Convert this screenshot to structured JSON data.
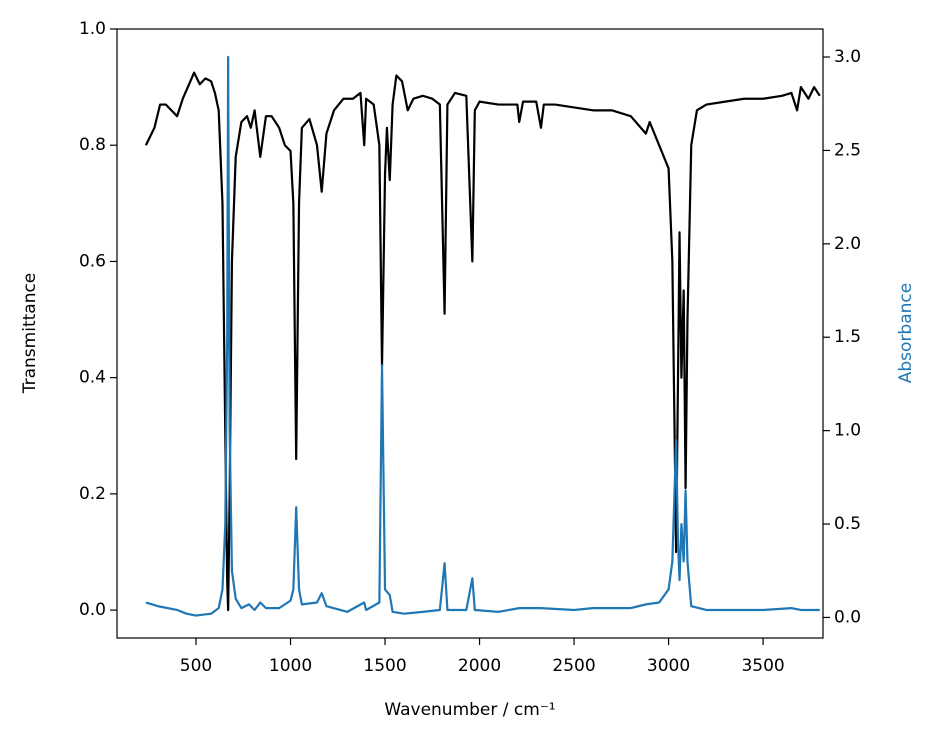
{
  "chart_data": {
    "type": "line",
    "xlabel": "Wavenumber / cm⁻¹",
    "ylabel": "Transmittance",
    "y2label": "Absorbance",
    "xlim": [
      82,
      3817
    ],
    "ylim": [
      -0.048,
      1.0
    ],
    "y2lim": [
      -0.11,
      3.15
    ],
    "xticks": [
      500,
      1000,
      1500,
      2000,
      2500,
      3000,
      3500
    ],
    "yticks": [
      {
        "value": 0.0,
        "label": "0.0"
      },
      0.2,
      0.4,
      0.6,
      0.8,
      {
        "value": 1.0,
        "label": "1.0"
      }
    ],
    "y2ticks": [
      {
        "value": 0.0,
        "label": "0.0"
      },
      0.5,
      {
        "value": 1.0,
        "label": "1.0"
      },
      1.5,
      {
        "value": 2.0,
        "label": "2.0"
      },
      2.5,
      {
        "value": 3.0,
        "label": "3.0"
      }
    ],
    "series": [
      {
        "color": "#000000",
        "x": [
          235,
          250,
          280,
          310,
          340,
          370,
          400,
          430,
          470,
          490,
          520,
          550,
          580,
          600,
          620,
          640,
          655,
          665,
          670,
          678,
          690,
          710,
          740,
          770,
          790,
          810,
          840,
          870,
          900,
          940,
          970,
          1000,
          1015,
          1030,
          1045,
          1060,
          1100,
          1140,
          1165,
          1190,
          1230,
          1280,
          1330,
          1370,
          1390,
          1400,
          1440,
          1470,
          1484,
          1500,
          1510,
          1525,
          1540,
          1560,
          1590,
          1620,
          1650,
          1700,
          1750,
          1790,
          1815,
          1830,
          1870,
          1930,
          1962,
          1975,
          2000,
          2100,
          2200,
          2210,
          2230,
          2300,
          2325,
          2340,
          2400,
          2500,
          2600,
          2650,
          2700,
          2800,
          2880,
          2900,
          2950,
          3000,
          3020,
          3040,
          3050,
          3058,
          3068,
          3080,
          3090,
          3100,
          3120,
          3150,
          3200,
          3300,
          3400,
          3500,
          3600,
          3650,
          3680,
          3700,
          3740,
          3770,
          3800
        ],
        "values": [
          0.8,
          0.81,
          0.83,
          0.87,
          0.87,
          0.86,
          0.85,
          0.88,
          0.91,
          0.925,
          0.905,
          0.915,
          0.91,
          0.89,
          0.86,
          0.7,
          0.3,
          0.05,
          0.0,
          0.2,
          0.6,
          0.78,
          0.84,
          0.85,
          0.83,
          0.86,
          0.78,
          0.85,
          0.85,
          0.83,
          0.8,
          0.79,
          0.7,
          0.26,
          0.7,
          0.83,
          0.845,
          0.8,
          0.72,
          0.82,
          0.86,
          0.88,
          0.88,
          0.89,
          0.8,
          0.88,
          0.87,
          0.8,
          0.42,
          0.75,
          0.83,
          0.74,
          0.87,
          0.92,
          0.91,
          0.86,
          0.88,
          0.885,
          0.88,
          0.87,
          0.51,
          0.87,
          0.89,
          0.885,
          0.6,
          0.86,
          0.875,
          0.87,
          0.87,
          0.84,
          0.875,
          0.875,
          0.83,
          0.87,
          0.87,
          0.865,
          0.86,
          0.86,
          0.86,
          0.85,
          0.82,
          0.84,
          0.8,
          0.76,
          0.6,
          0.1,
          0.4,
          0.65,
          0.4,
          0.55,
          0.21,
          0.5,
          0.8,
          0.86,
          0.87,
          0.875,
          0.88,
          0.88,
          0.885,
          0.89,
          0.86,
          0.9,
          0.88,
          0.9,
          0.885
        ]
      },
      {
        "color": "#1f77b4",
        "axis": "y2",
        "x": [
          235,
          300,
          400,
          450,
          500,
          580,
          620,
          640,
          655,
          665,
          670,
          678,
          690,
          710,
          740,
          780,
          810,
          840,
          870,
          940,
          1000,
          1015,
          1030,
          1045,
          1060,
          1140,
          1165,
          1190,
          1300,
          1390,
          1400,
          1470,
          1484,
          1500,
          1525,
          1540,
          1600,
          1700,
          1790,
          1815,
          1830,
          1930,
          1962,
          1975,
          2100,
          2210,
          2325,
          2500,
          2600,
          2800,
          2880,
          2950,
          3000,
          3020,
          3040,
          3050,
          3058,
          3068,
          3080,
          3090,
          3100,
          3120,
          3200,
          3500,
          3650,
          3700,
          3800
        ],
        "values": [
          0.08,
          0.06,
          0.04,
          0.02,
          0.01,
          0.02,
          0.05,
          0.15,
          0.5,
          1.5,
          3.0,
          1.0,
          0.25,
          0.1,
          0.05,
          0.07,
          0.04,
          0.08,
          0.05,
          0.05,
          0.09,
          0.15,
          0.59,
          0.15,
          0.07,
          0.08,
          0.13,
          0.06,
          0.03,
          0.08,
          0.04,
          0.08,
          1.35,
          0.15,
          0.12,
          0.03,
          0.02,
          0.03,
          0.04,
          0.29,
          0.04,
          0.04,
          0.21,
          0.04,
          0.03,
          0.05,
          0.05,
          0.04,
          0.05,
          0.05,
          0.07,
          0.08,
          0.15,
          0.3,
          0.95,
          0.4,
          0.2,
          0.5,
          0.3,
          0.68,
          0.3,
          0.06,
          0.04,
          0.04,
          0.05,
          0.04,
          0.04
        ]
      }
    ]
  }
}
